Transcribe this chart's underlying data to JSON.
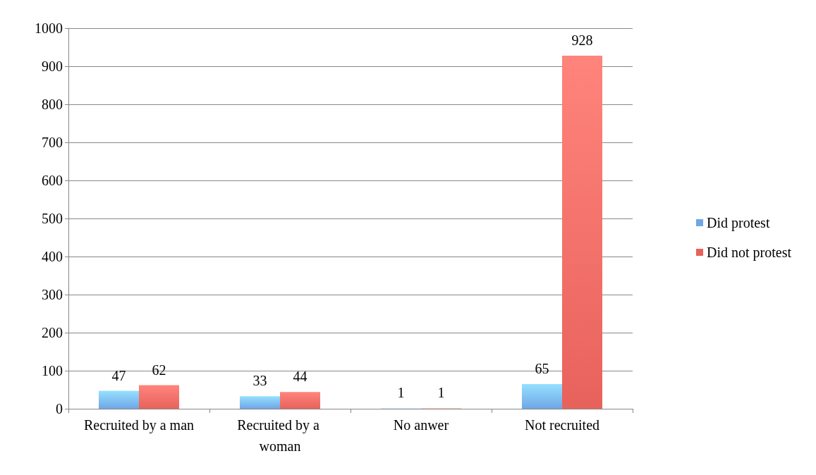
{
  "chart_data": {
    "type": "bar",
    "categories": [
      "Recruited by a man",
      "Recruited by a woman",
      "No anwer",
      "Not recruited"
    ],
    "series": [
      {
        "name": "Did protest",
        "color": "#6fa6e6",
        "values": [
          47,
          33,
          1,
          65
        ]
      },
      {
        "name": "Did not protest",
        "color": "#e8625c",
        "values": [
          62,
          44,
          1,
          928
        ]
      }
    ],
    "ylim": [
      0,
      1000
    ],
    "yticks": [
      0,
      100,
      200,
      300,
      400,
      500,
      600,
      700,
      800,
      900,
      1000
    ],
    "grid": "y",
    "legend": "right",
    "data_labels": true
  }
}
